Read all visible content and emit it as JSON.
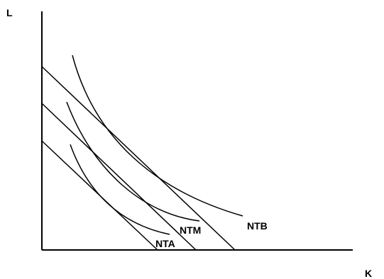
{
  "diagram": {
    "axes": {
      "y_label": "L",
      "x_label": "K"
    },
    "curve_labels": {
      "nta": "NTA",
      "ntm": "NTM",
      "ntb": "NTB"
    },
    "colors": {
      "background": "#ffffff",
      "ink": "#000000"
    }
  }
}
